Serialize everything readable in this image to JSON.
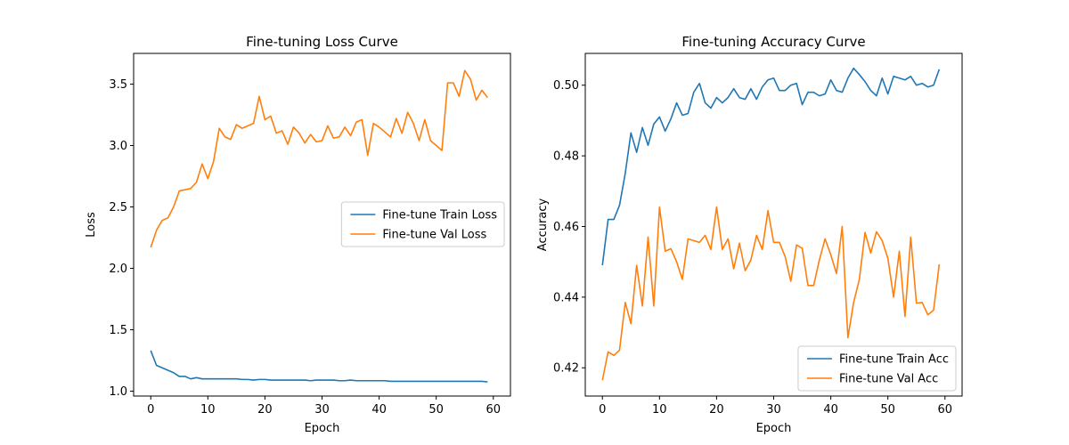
{
  "chart_data": [
    {
      "type": "line",
      "title": "Fine-tuning Loss Curve",
      "xlabel": "Epoch",
      "ylabel": "Loss",
      "xlim": [
        -3,
        63
      ],
      "ylim": [
        0.96,
        3.75
      ],
      "xticks": [
        0,
        10,
        20,
        30,
        40,
        50,
        60
      ],
      "yticks": [
        1.0,
        1.5,
        2.0,
        2.5,
        3.0,
        3.5
      ],
      "ytick_labels": [
        "1.0",
        "1.5",
        "2.0",
        "2.5",
        "3.0",
        "3.5"
      ],
      "legend_loc": "center-right",
      "grid": false,
      "series": [
        {
          "name": "Fine-tune Train Loss",
          "color": "#1f77b4",
          "values": [
            1.33,
            1.21,
            1.19,
            1.17,
            1.15,
            1.12,
            1.12,
            1.1,
            1.11,
            1.1,
            1.1,
            1.1,
            1.1,
            1.1,
            1.1,
            1.1,
            1.095,
            1.095,
            1.09,
            1.095,
            1.095,
            1.09,
            1.09,
            1.09,
            1.09,
            1.09,
            1.09,
            1.09,
            1.085,
            1.09,
            1.09,
            1.09,
            1.09,
            1.085,
            1.085,
            1.09,
            1.085,
            1.085,
            1.085,
            1.085,
            1.085,
            1.085,
            1.08,
            1.08,
            1.08,
            1.08,
            1.08,
            1.08,
            1.08,
            1.08,
            1.08,
            1.08,
            1.08,
            1.08,
            1.08,
            1.08,
            1.08,
            1.08,
            1.08,
            1.075
          ]
        },
        {
          "name": "Fine-tune Val Loss",
          "color": "#ff7f0e",
          "values": [
            2.17,
            2.31,
            2.39,
            2.41,
            2.5,
            2.63,
            2.64,
            2.65,
            2.7,
            2.85,
            2.73,
            2.87,
            3.14,
            3.07,
            3.05,
            3.17,
            3.14,
            3.16,
            3.18,
            3.4,
            3.21,
            3.24,
            3.1,
            3.12,
            3.01,
            3.15,
            3.1,
            3.02,
            3.09,
            3.03,
            3.04,
            3.16,
            3.06,
            3.07,
            3.15,
            3.08,
            3.19,
            3.21,
            2.92,
            3.18,
            3.15,
            3.11,
            3.07,
            3.22,
            3.1,
            3.27,
            3.18,
            3.04,
            3.21,
            3.04,
            3.0,
            2.96,
            3.51,
            3.51,
            3.4,
            3.61,
            3.54,
            3.37,
            3.45,
            3.39
          ]
        }
      ]
    },
    {
      "type": "line",
      "title": "Fine-tuning Accuracy Curve",
      "xlabel": "Epoch",
      "ylabel": "Accuracy",
      "xlim": [
        -3,
        63
      ],
      "ylim": [
        0.412,
        0.509
      ],
      "xticks": [
        0,
        10,
        20,
        30,
        40,
        50,
        60
      ],
      "yticks": [
        0.42,
        0.44,
        0.46,
        0.48,
        0.5
      ],
      "ytick_labels": [
        "0.42",
        "0.44",
        "0.46",
        "0.48",
        "0.50"
      ],
      "legend_loc": "lower-right",
      "grid": false,
      "series": [
        {
          "name": "Fine-tune Train Acc",
          "color": "#1f77b4",
          "values": [
            0.449,
            0.462,
            0.462,
            0.466,
            0.475,
            0.4865,
            0.481,
            0.488,
            0.483,
            0.489,
            0.491,
            0.487,
            0.4905,
            0.495,
            0.4915,
            0.492,
            0.498,
            0.5005,
            0.495,
            0.4935,
            0.4965,
            0.495,
            0.4965,
            0.499,
            0.4965,
            0.496,
            0.499,
            0.496,
            0.4995,
            0.5015,
            0.502,
            0.4985,
            0.4985,
            0.5,
            0.5005,
            0.4945,
            0.498,
            0.498,
            0.497,
            0.4975,
            0.5015,
            0.4985,
            0.498,
            0.502,
            0.5048,
            0.503,
            0.501,
            0.4985,
            0.497,
            0.502,
            0.4975,
            0.5025,
            0.502,
            0.5015,
            0.5025,
            0.5,
            0.5005,
            0.4995,
            0.5,
            0.5045
          ]
        },
        {
          "name": "Fine-tune Val Acc",
          "color": "#ff7f0e",
          "values": [
            0.4165,
            0.4245,
            0.4235,
            0.425,
            0.4385,
            0.4325,
            0.449,
            0.4375,
            0.457,
            0.4375,
            0.4655,
            0.453,
            0.4537,
            0.45,
            0.445,
            0.4565,
            0.456,
            0.4555,
            0.4575,
            0.4535,
            0.4655,
            0.4535,
            0.4565,
            0.448,
            0.4553,
            0.4475,
            0.4505,
            0.4575,
            0.4535,
            0.4645,
            0.4555,
            0.4555,
            0.4515,
            0.4445,
            0.4548,
            0.4538,
            0.4433,
            0.4433,
            0.4505,
            0.4565,
            0.452,
            0.4467,
            0.46,
            0.4285,
            0.4385,
            0.445,
            0.4583,
            0.4525,
            0.4585,
            0.456,
            0.451,
            0.44,
            0.453,
            0.4345,
            0.457,
            0.4383,
            0.4385,
            0.435,
            0.4363,
            0.4493
          ]
        }
      ]
    }
  ]
}
